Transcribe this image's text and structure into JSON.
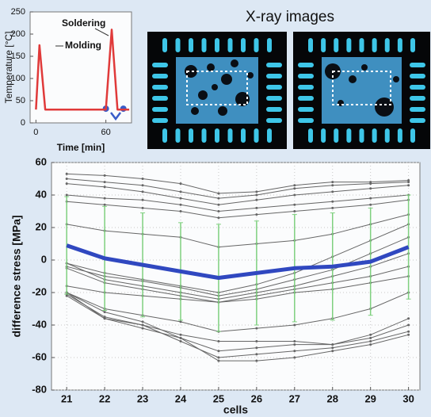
{
  "chart_data": [
    {
      "type": "line",
      "xlabel": "Time [min]",
      "ylabel": "Temperature [°C]",
      "annotations": [
        "Soldering",
        "Molding"
      ],
      "xlim": [
        -5,
        82
      ],
      "xticks": [
        0,
        60
      ],
      "ylim": [
        0,
        250
      ],
      "yticks": [
        0,
        50,
        100,
        150,
        200,
        250
      ],
      "series": [
        {
          "color": "#e03a3a",
          "x": [
            0,
            3,
            8,
            60,
            65,
            70,
            80
          ],
          "values": [
            30,
            175,
            30,
            30,
            210,
            30,
            30
          ]
        },
        {
          "color": "#3a5cc8",
          "marker": "dot",
          "x": [
            60,
            75
          ],
          "values": [
            32,
            32
          ]
        }
      ]
    },
    {
      "type": "line",
      "xlabel": "cells",
      "ylabel": "difference stress [MPa]",
      "xlim": [
        20.6,
        30.3
      ],
      "xticks": [
        21,
        22,
        23,
        24,
        25,
        26,
        27,
        28,
        29,
        30
      ],
      "ylim": [
        -80,
        60
      ],
      "yticks": [
        -80,
        -60,
        -40,
        -20,
        0,
        20,
        40,
        60
      ],
      "grid": true,
      "x": [
        21,
        22,
        23,
        24,
        25,
        26,
        27,
        28,
        29,
        30
      ],
      "error_color": "#7fd07f",
      "series": [
        {
          "color": "#3048c0",
          "values": [
            9,
            1,
            -3,
            -7,
            -11,
            -8,
            -5,
            -4,
            -1,
            8
          ],
          "errors": [
            30,
            32,
            32,
            30,
            33,
            32,
            33,
            33,
            33,
            32
          ]
        },
        {
          "color": "#666666",
          "values": [
            53,
            52,
            50,
            47,
            41,
            42,
            46,
            48,
            48,
            49
          ]
        },
        {
          "color": "#666666",
          "values": [
            50,
            48,
            46,
            42,
            38,
            40,
            44,
            46,
            47,
            48
          ]
        },
        {
          "color": "#666666",
          "values": [
            47,
            45,
            42,
            38,
            34,
            37,
            40,
            42,
            44,
            46
          ]
        },
        {
          "color": "#666666",
          "values": [
            40,
            38,
            37,
            34,
            30,
            32,
            34,
            36,
            38,
            40
          ]
        },
        {
          "color": "#666666",
          "values": [
            36,
            34,
            32,
            30,
            26,
            28,
            30,
            32,
            34,
            37
          ]
        },
        {
          "color": "#666666",
          "values": [
            22,
            18,
            16,
            14,
            8,
            10,
            12,
            16,
            22,
            28
          ]
        },
        {
          "color": "#666666",
          "values": [
            -2,
            -8,
            -12,
            -16,
            -20,
            -15,
            -8,
            2,
            12,
            22
          ]
        },
        {
          "color": "#666666",
          "values": [
            -4,
            -10,
            -13,
            -17,
            -22,
            -18,
            -12,
            -6,
            4,
            14
          ]
        },
        {
          "color": "#666666",
          "values": [
            -2,
            -12,
            -16,
            -20,
            -24,
            -20,
            -16,
            -10,
            -4,
            4
          ]
        },
        {
          "color": "#666666",
          "values": [
            -5,
            -14,
            -18,
            -22,
            -26,
            -22,
            -18,
            -14,
            -10,
            -4
          ]
        },
        {
          "color": "#666666",
          "values": [
            -16,
            -20,
            -22,
            -24,
            -26,
            -24,
            -20,
            -18,
            -14,
            -10
          ]
        },
        {
          "color": "#666666",
          "values": [
            -20,
            -30,
            -34,
            -38,
            -44,
            -42,
            -40,
            -36,
            -30,
            -20
          ]
        },
        {
          "color": "#666666",
          "values": [
            -20,
            -36,
            -40,
            -46,
            -50,
            -50,
            -50,
            -52,
            -46,
            -36
          ]
        },
        {
          "color": "#666666",
          "values": [
            -22,
            -36,
            -42,
            -48,
            -56,
            -54,
            -52,
            -52,
            -48,
            -40
          ]
        },
        {
          "color": "#666666",
          "values": [
            -21,
            -35,
            -40,
            -50,
            -60,
            -58,
            -56,
            -54,
            -50,
            -44
          ]
        },
        {
          "color": "#666666",
          "values": [
            -20,
            -32,
            -38,
            -48,
            -62,
            -62,
            -60,
            -56,
            -52,
            -46
          ]
        }
      ]
    }
  ],
  "xray": {
    "title": "X-ray images"
  }
}
